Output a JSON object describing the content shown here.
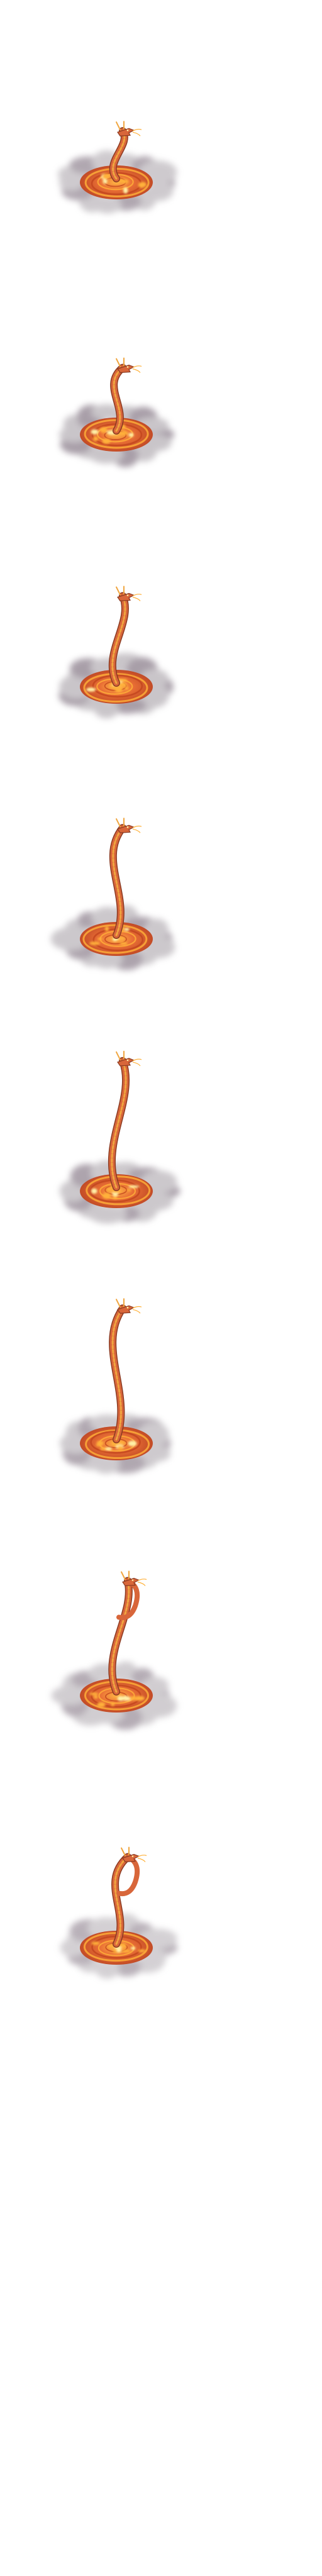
{
  "sprite_sheet": {
    "background": "#ffffff",
    "frame_count": 8,
    "empty_frames_after": 2,
    "palette": {
      "smoke": "#b8b2b8",
      "smoke_dark": "#8c7f8c",
      "lava_dark": "#c2451e",
      "lava": "#e8672a",
      "lava_bright": "#ffb13a",
      "highlight": "#fff1a8",
      "dragon_body": "#d8663a",
      "dragon_scales": "#f0a640",
      "dragon_outline": "#8a3a22"
    },
    "frames": [
      {
        "name": "frame-1",
        "dragon_rise": 0.22,
        "smoke_level": 0.9
      },
      {
        "name": "frame-2",
        "dragon_rise": 0.35,
        "smoke_level": 1.0
      },
      {
        "name": "frame-3",
        "dragon_rise": 0.55,
        "smoke_level": 1.0
      },
      {
        "name": "frame-4",
        "dragon_rise": 0.72,
        "smoke_level": 0.95
      },
      {
        "name": "frame-5",
        "dragon_rise": 0.88,
        "smoke_level": 0.95
      },
      {
        "name": "frame-6",
        "dragon_rise": 0.92,
        "smoke_level": 0.9
      },
      {
        "name": "frame-7",
        "dragon_rise": 0.75,
        "smoke_level": 0.85
      },
      {
        "name": "frame-8",
        "dragon_rise": 0.55,
        "smoke_level": 0.8
      }
    ]
  }
}
